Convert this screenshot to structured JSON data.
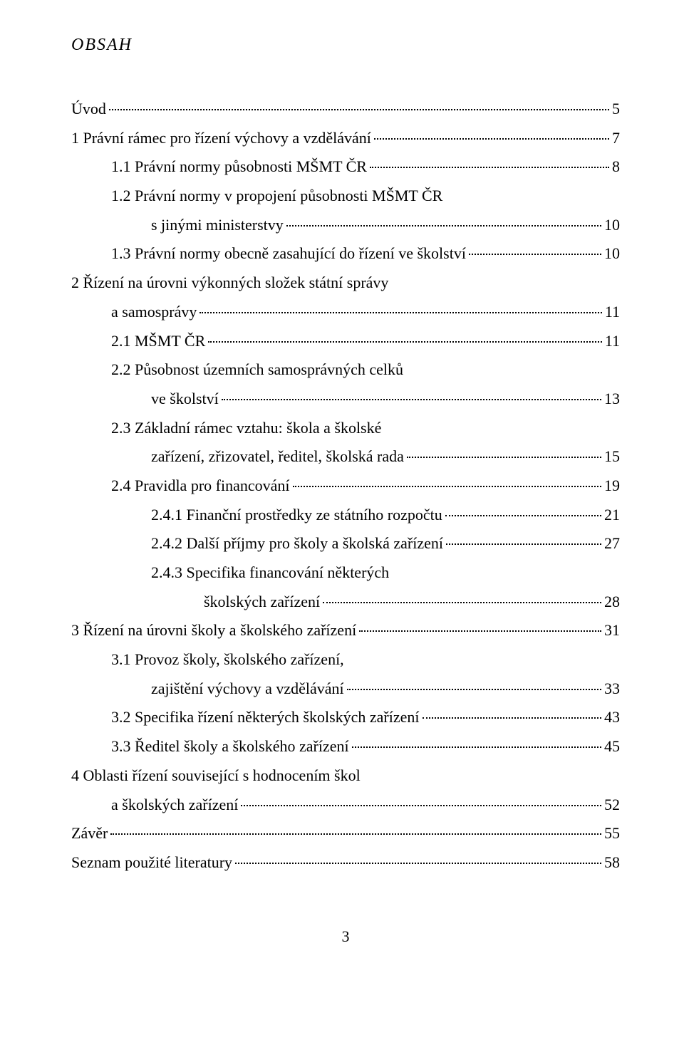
{
  "header": "OBSAH",
  "entries": [
    {
      "indent": 0,
      "label": "Úvod",
      "page": "5"
    },
    {
      "indent": 0,
      "label": "1 Právní rámec pro řízení výchovy a vzdělávání",
      "page": "7"
    },
    {
      "indent": 1,
      "label": "1.1 Právní normy působnosti MŠMT ČR",
      "page": "8"
    },
    {
      "indent": 1,
      "label": "1.2 Právní normy v propojení působnosti MŠMT ČR",
      "continuation": true
    },
    {
      "indent": 2,
      "label": "s jinými ministerstvy",
      "page": "10"
    },
    {
      "indent": 1,
      "label": "1.3 Právní normy obecně zasahující do řízení ve školství",
      "page": "10"
    },
    {
      "indent": 0,
      "label": "2 Řízení na úrovni výkonných složek státní správy",
      "continuation": true
    },
    {
      "indent": 1,
      "label": "a samosprávy",
      "page": "11"
    },
    {
      "indent": 1,
      "label": "2.1 MŠMT ČR",
      "page": "11"
    },
    {
      "indent": 1,
      "label": "2.2 Působnost územních samosprávných celků",
      "continuation": true
    },
    {
      "indent": 2,
      "label": "ve školství",
      "page": "13"
    },
    {
      "indent": 1,
      "label": "2.3 Základní rámec vztahu: škola a školské",
      "continuation": true
    },
    {
      "indent": 2,
      "label": "zařízení, zřizovatel, ředitel, školská rada",
      "page": "15"
    },
    {
      "indent": 1,
      "label": "2.4 Pravidla pro financování",
      "page": "19"
    },
    {
      "indent": 2,
      "label": "2.4.1 Finanční prostředky ze státního rozpočtu",
      "page": "21"
    },
    {
      "indent": 2,
      "label": "2.4.2 Další příjmy pro školy a školská zařízení",
      "page": "27"
    },
    {
      "indent": 2,
      "label": "2.4.3 Specifika financování některých",
      "continuation": true
    },
    {
      "indent": 3,
      "label": "školských zařízení",
      "page": "28"
    },
    {
      "indent": 0,
      "label": "3 Řízení na úrovni školy a školského zařízení",
      "page": "31"
    },
    {
      "indent": 1,
      "label": "3.1 Provoz školy, školského zařízení,",
      "continuation": true
    },
    {
      "indent": 2,
      "label": "zajištění výchovy a vzdělávání",
      "page": "33"
    },
    {
      "indent": 1,
      "label": "3.2 Specifika řízení některých školských zařízení",
      "page": "43"
    },
    {
      "indent": 1,
      "label": "3.3 Ředitel školy a školského zařízení",
      "page": "45"
    },
    {
      "indent": 0,
      "label": "4 Oblasti řízení související s hodnocením škol",
      "continuation": true
    },
    {
      "indent": 1,
      "label": "a školských zařízení",
      "page": "52"
    },
    {
      "indent": 0,
      "label": "Závěr",
      "page": "55"
    },
    {
      "indent": 0,
      "label": "Seznam použité literatury",
      "page": "58"
    }
  ],
  "pageNumber": "3"
}
